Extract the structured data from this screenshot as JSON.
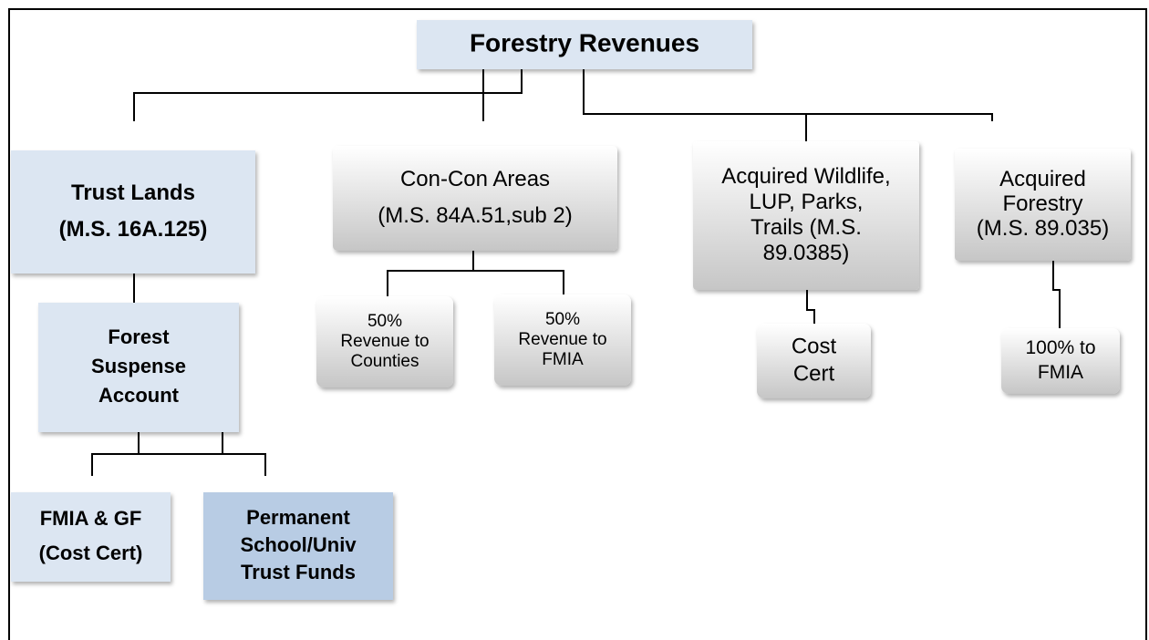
{
  "nodes": [
    {
      "lines": [
        "Forestry Revenues"
      ]
    },
    {
      "lines": [
        "Trust Lands",
        "(M.S. 16A.125)"
      ]
    },
    {
      "lines": [
        "Forest",
        "Suspense",
        "Account"
      ]
    },
    {
      "lines": [
        "FMIA & GF",
        "(Cost Cert)"
      ]
    },
    {
      "lines": [
        "Permanent",
        "School/Univ",
        "Trust Funds"
      ]
    },
    {
      "lines": [
        "Con-Con Areas",
        "(M.S. 84A.51,sub 2)"
      ]
    },
    {
      "lines": [
        "50%",
        "Revenue to",
        "Counties"
      ]
    },
    {
      "lines": [
        "50%",
        "Revenue to",
        "FMIA"
      ]
    },
    {
      "lines": [
        "Acquired Wildlife,",
        "LUP, Parks,",
        "Trails (M.S.",
        "89.0385)"
      ]
    },
    {
      "lines": [
        "Cost",
        "Cert"
      ]
    },
    {
      "lines": [
        "Acquired",
        "Forestry",
        "(M.S. 89.035)"
      ]
    },
    {
      "lines": [
        "100% to",
        "FMIA"
      ]
    }
  ]
}
